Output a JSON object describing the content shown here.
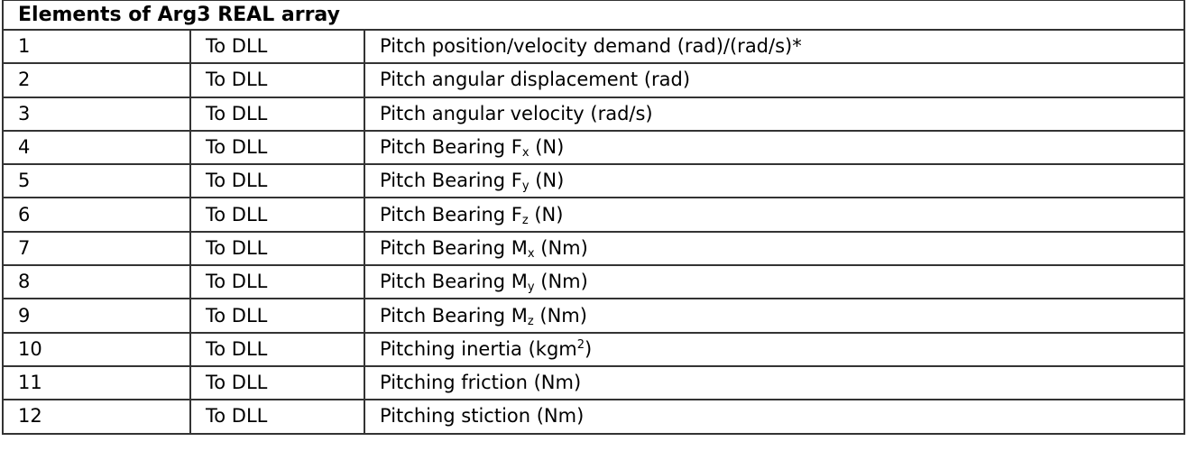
{
  "title": "Elements of Arg3 REAL array",
  "rows": [
    {
      "index": "1",
      "direction": "To DLL",
      "pre": "Pitch position/velocity demand (rad)/(rad/s)*",
      "sub": "",
      "sup": "",
      "post": ""
    },
    {
      "index": "2",
      "direction": "To DLL",
      "pre": "Pitch angular displacement (rad)",
      "sub": "",
      "sup": "",
      "post": ""
    },
    {
      "index": "3",
      "direction": "To DLL",
      "pre": "Pitch angular velocity (rad/s)",
      "sub": "",
      "sup": "",
      "post": ""
    },
    {
      "index": "4",
      "direction": "To DLL",
      "pre": "Pitch Bearing F",
      "sub": "x",
      "sup": "",
      "post": " (N)"
    },
    {
      "index": "5",
      "direction": "To DLL",
      "pre": "Pitch Bearing F",
      "sub": "y",
      "sup": "",
      "post": " (N)"
    },
    {
      "index": "6",
      "direction": "To DLL",
      "pre": "Pitch Bearing F",
      "sub": "z",
      "sup": "",
      "post": " (N)"
    },
    {
      "index": "7",
      "direction": "To DLL",
      "pre": "Pitch Bearing M",
      "sub": "x",
      "sup": "",
      "post": " (Nm)"
    },
    {
      "index": "8",
      "direction": "To DLL",
      "pre": "Pitch Bearing M",
      "sub": "y",
      "sup": "",
      "post": " (Nm)"
    },
    {
      "index": "9",
      "direction": "To DLL",
      "pre": "Pitch Bearing M",
      "sub": "z",
      "sup": "",
      "post": " (Nm)"
    },
    {
      "index": "10",
      "direction": "To DLL",
      "pre": "Pitching inertia (kgm",
      "sub": "",
      "sup": "2",
      "post": ")"
    },
    {
      "index": "11",
      "direction": "To DLL",
      "pre": "Pitching friction (Nm)",
      "sub": "",
      "sup": "",
      "post": ""
    },
    {
      "index": "12",
      "direction": "To DLL",
      "pre": "Pitching stiction (Nm)",
      "sub": "",
      "sup": "",
      "post": ""
    }
  ]
}
